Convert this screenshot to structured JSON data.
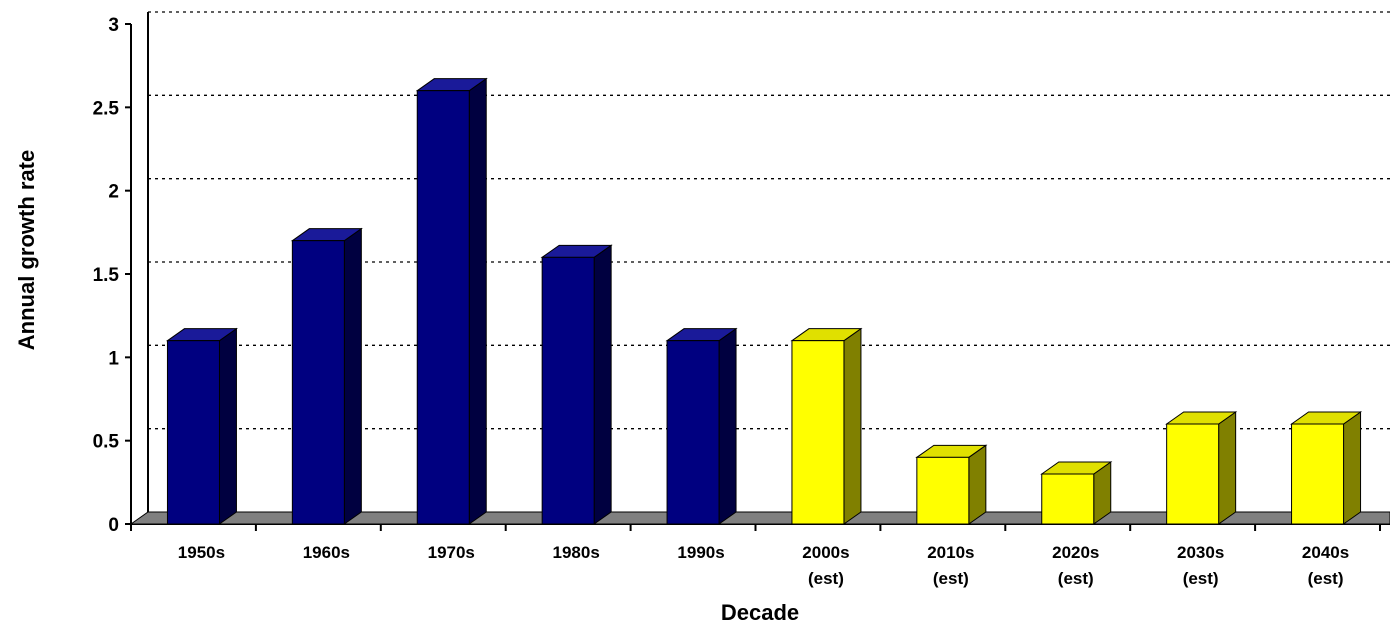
{
  "chart_data": {
    "type": "bar",
    "title": "",
    "xlabel": "Decade",
    "ylabel": "Annual growth rate",
    "categories": [
      "1950s",
      "1960s",
      "1970s",
      "1980s",
      "1990s",
      "2000s (est)",
      "2010s (est)",
      "2020s (est)",
      "2030s (est)",
      "2040s (est)"
    ],
    "category_lines": [
      [
        "1950s"
      ],
      [
        "1960s"
      ],
      [
        "1970s"
      ],
      [
        "1980s"
      ],
      [
        "1990s"
      ],
      [
        "2000s",
        "(est)"
      ],
      [
        "2010s",
        "(est)"
      ],
      [
        "2020s",
        "(est)"
      ],
      [
        "2030s",
        "(est)"
      ],
      [
        "2040s",
        "(est)"
      ]
    ],
    "values": [
      1.1,
      1.7,
      2.6,
      1.6,
      1.1,
      1.1,
      0.4,
      0.3,
      0.6,
      0.6
    ],
    "kinds": [
      "actual",
      "actual",
      "actual",
      "actual",
      "actual",
      "estimate",
      "estimate",
      "estimate",
      "estimate",
      "estimate"
    ],
    "ylim": [
      0,
      3
    ],
    "yticks": [
      "0",
      "0.5",
      "1",
      "1.5",
      "2",
      "2.5",
      "3"
    ],
    "grid": true,
    "grid_style": "dotted",
    "legend": "none",
    "render_style": "3d-columns",
    "colors": {
      "actual_front": "#000080",
      "actual_side": "#000040",
      "actual_top": "#1a1a99",
      "estimate_front": "#ffff00",
      "estimate_side": "#808000",
      "estimate_top": "#e0e000",
      "floor": "#808080",
      "axis": "#000000",
      "grid": "#000000"
    }
  }
}
